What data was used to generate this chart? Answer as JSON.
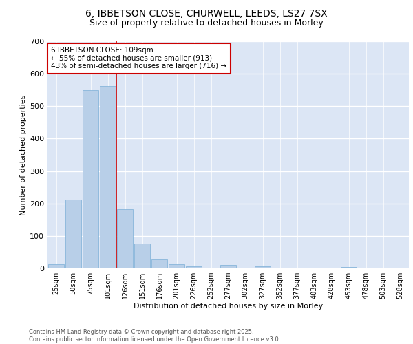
{
  "title_line1": "6, IBBETSON CLOSE, CHURWELL, LEEDS, LS27 7SX",
  "title_line2": "Size of property relative to detached houses in Morley",
  "xlabel": "Distribution of detached houses by size in Morley",
  "ylabel": "Number of detached properties",
  "footer_line1": "Contains HM Land Registry data © Crown copyright and database right 2025.",
  "footer_line2": "Contains public sector information licensed under the Open Government Licence v3.0.",
  "bar_labels": [
    "25sqm",
    "50sqm",
    "75sqm",
    "101sqm",
    "126sqm",
    "151sqm",
    "176sqm",
    "201sqm",
    "226sqm",
    "252sqm",
    "277sqm",
    "302sqm",
    "327sqm",
    "352sqm",
    "377sqm",
    "403sqm",
    "428sqm",
    "453sqm",
    "478sqm",
    "503sqm",
    "528sqm"
  ],
  "bar_values": [
    12,
    212,
    550,
    562,
    182,
    77,
    28,
    12,
    7,
    0,
    10,
    0,
    7,
    0,
    0,
    0,
    0,
    5,
    0,
    0,
    0
  ],
  "bar_color": "#b8cfe8",
  "bar_edge_color": "#7aaed6",
  "background_color": "#dce6f5",
  "grid_color": "#ffffff",
  "fig_background": "#ffffff",
  "annotation_text": "6 IBBETSON CLOSE: 109sqm\n← 55% of detached houses are smaller (913)\n43% of semi-detached houses are larger (716) →",
  "annotation_box_color": "#ffffff",
  "annotation_box_edge": "#cc0000",
  "vline_x": 3.5,
  "vline_color": "#cc0000",
  "ylim": [
    0,
    700
  ],
  "yticks": [
    0,
    100,
    200,
    300,
    400,
    500,
    600,
    700
  ]
}
